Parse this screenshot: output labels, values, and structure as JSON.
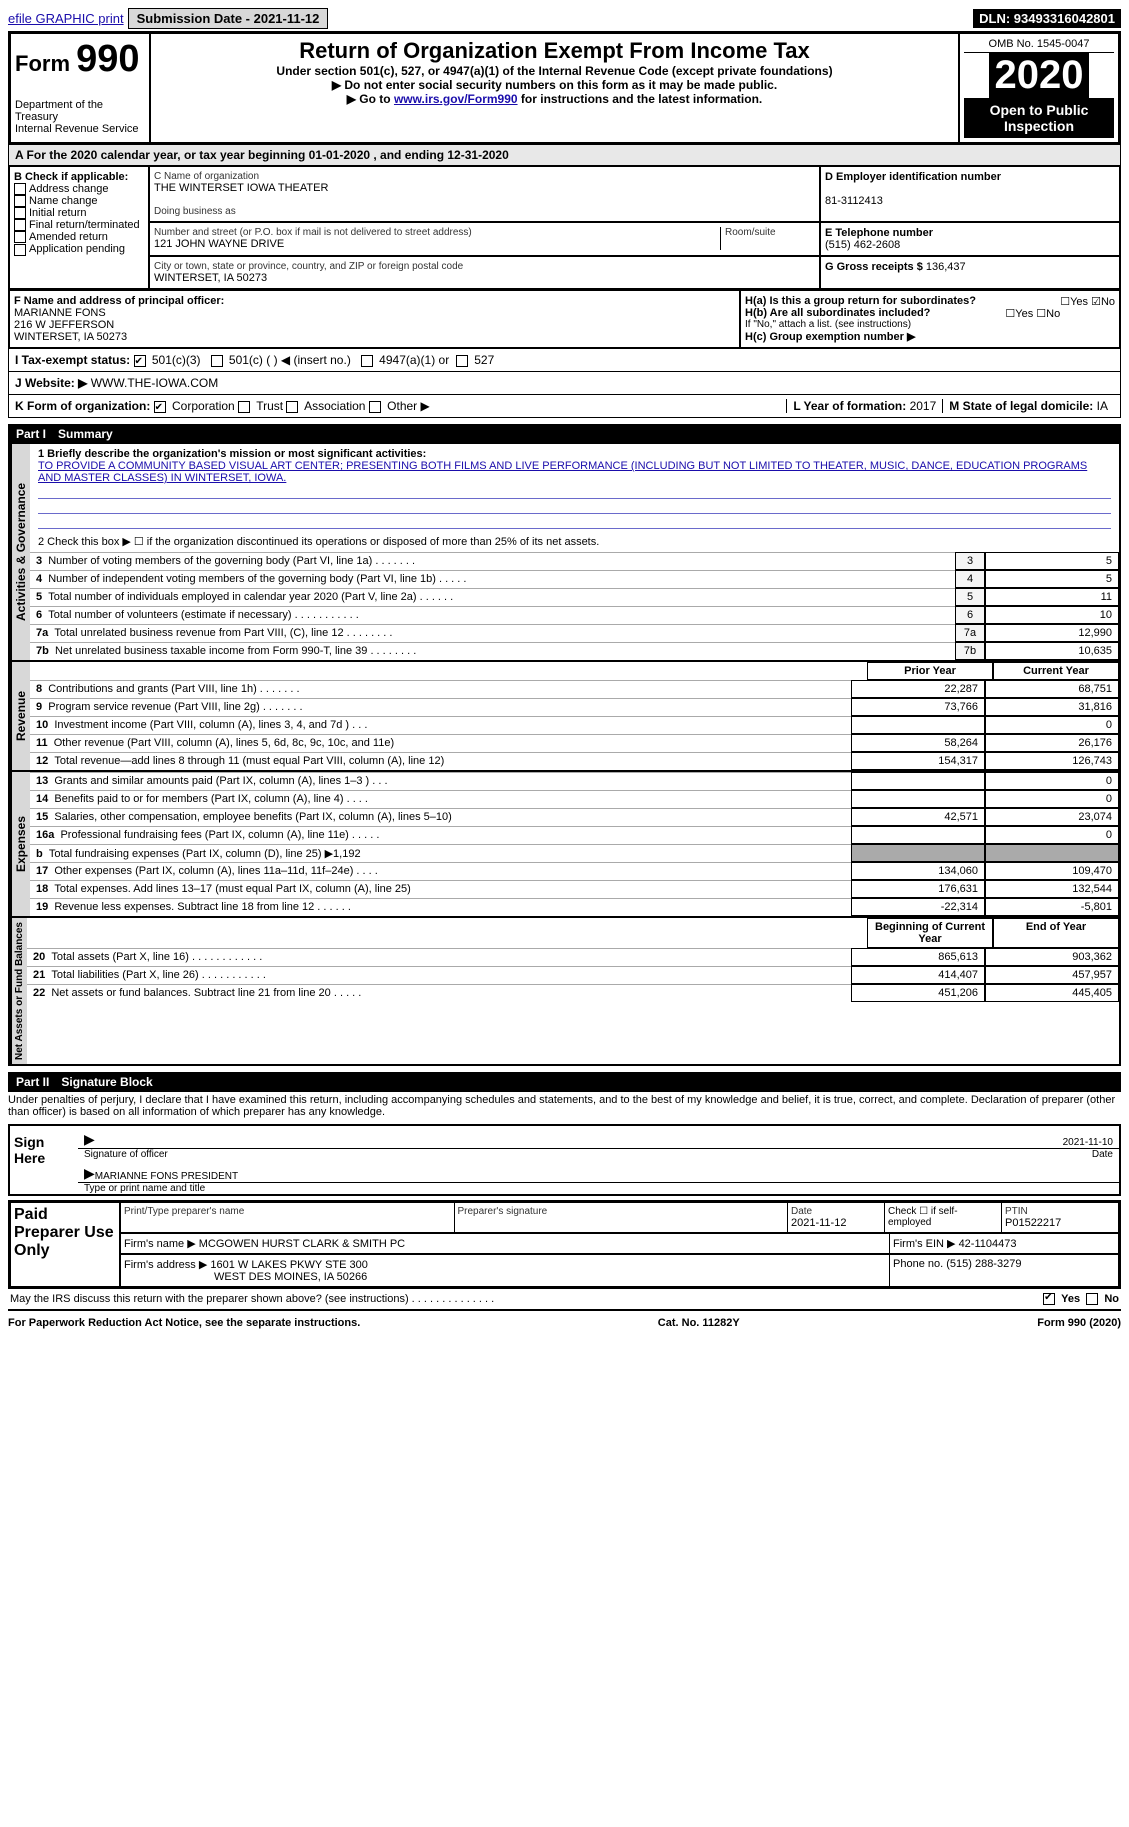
{
  "topbar": {
    "efile_link": "efile GRAPHIC print",
    "submission_label": "Submission Date - 2021-11-12",
    "dln": "DLN: 93493316042801"
  },
  "header": {
    "form_label": "Form",
    "form_number": "990",
    "title": "Return of Organization Exempt From Income Tax",
    "subtitle1": "Under section 501(c), 527, or 4947(a)(1) of the Internal Revenue Code (except private foundations)",
    "subtitle2": "▶ Do not enter social security numbers on this form as it may be made public.",
    "subtitle3_prefix": "▶ Go to ",
    "subtitle3_link": "www.irs.gov/Form990",
    "subtitle3_suffix": " for instructions and the latest information.",
    "dept": "Department of the Treasury\nInternal Revenue Service",
    "omb": "OMB No. 1545-0047",
    "year": "2020",
    "inspection": "Open to Public Inspection"
  },
  "sectionA": {
    "text": "A For the 2020 calendar year, or tax year beginning 01-01-2020   , and ending 12-31-2020"
  },
  "boxB": {
    "heading": "B Check if applicable:",
    "items": [
      "Address change",
      "Name change",
      "Initial return",
      "Final return/terminated",
      "Amended return",
      "Application pending"
    ]
  },
  "boxC": {
    "name_caption": "C Name of organization",
    "name": "THE WINTERSET IOWA THEATER",
    "dba_caption": "Doing business as",
    "dba": "",
    "street_caption": "Number and street (or P.O. box if mail is not delivered to street address)",
    "room_caption": "Room/suite",
    "street": "121 JOHN WAYNE DRIVE",
    "city_caption": "City or town, state or province, country, and ZIP or foreign postal code",
    "city": "WINTERSET, IA  50273"
  },
  "boxD": {
    "caption": "D Employer identification number",
    "value": "81-3112413"
  },
  "boxE": {
    "caption": "E Telephone number",
    "value": "(515) 462-2608"
  },
  "boxG": {
    "caption": "G Gross receipts $",
    "value": "136,437"
  },
  "boxF": {
    "caption": "F Name and address of principal officer:",
    "name": "MARIANNE FONS",
    "addr1": "216 W JEFFERSON",
    "addr2": "WINTERSET, IA  50273"
  },
  "boxH": {
    "a_label": "H(a)  Is this a group return for subordinates?",
    "b_label": "H(b)  Are all subordinates included?",
    "b_note": "If \"No,\" attach a list. (see instructions)",
    "c_label": "H(c)  Group exemption number ▶",
    "yes": "Yes",
    "no": "No"
  },
  "statusI": {
    "label": "I   Tax-exempt status:",
    "opt1": "501(c)(3)",
    "opt2": "501(c) (  ) ◀ (insert no.)",
    "opt3": "4947(a)(1) or",
    "opt4": "527"
  },
  "websiteJ": {
    "label": "J   Website: ▶",
    "value": "WWW.THE-IOWA.COM"
  },
  "formK": {
    "label": "K Form of organization:",
    "opts": [
      "Corporation",
      "Trust",
      "Association",
      "Other ▶"
    ]
  },
  "boxL": {
    "label": "L Year of formation:",
    "value": "2017"
  },
  "boxM": {
    "label": "M State of legal domicile:",
    "value": "IA"
  },
  "part1": {
    "tag": "Part I",
    "title": "Summary",
    "line1_label": "1  Briefly describe the organization's mission or most significant activities:",
    "mission": "TO PROVIDE A COMMUNITY BASED VISUAL ART CENTER; PRESENTING BOTH FILMS AND LIVE PERFORMANCE (INCLUDING BUT NOT LIMITED TO THEATER, MUSIC, DANCE, EDUCATION PROGRAMS AND MASTER CLASSES) IN WINTERSET, IOWA.",
    "line2_label": "2   Check this box ▶ ☐  if the organization discontinued its operations or disposed of more than 25% of its net assets.",
    "governance_tab": "Activities & Governance",
    "revenue_tab": "Revenue",
    "expenses_tab": "Expenses",
    "netassets_tab": "Net Assets or Fund Balances",
    "gov_rows": [
      {
        "n": "3",
        "label": "Number of voting members of the governing body (Part VI, line 1a)   .   .   .   .   .   .   .",
        "val": "5"
      },
      {
        "n": "4",
        "label": "Number of independent voting members of the governing body (Part VI, line 1b)   .   .   .   .   .",
        "val": "5"
      },
      {
        "n": "5",
        "label": "Total number of individuals employed in calendar year 2020 (Part V, line 2a)   .   .   .   .   .   .",
        "val": "11"
      },
      {
        "n": "6",
        "label": "Total number of volunteers (estimate if necessary)   .   .   .   .   .   .   .   .   .   .   .",
        "val": "10"
      },
      {
        "n": "7a",
        "label": "Total unrelated business revenue from Part VIII, (C), line 12   .   .   .   .   .   .   .   .",
        "val": "12,990"
      },
      {
        "n": "7b",
        "label": "Net unrelated business taxable income from Form 990-T, line 39   .   .   .   .   .   .   .   .",
        "val": "10,635"
      }
    ],
    "col_prior": "Prior Year",
    "col_current": "Current Year",
    "rev_rows": [
      {
        "n": "8",
        "label": "Contributions and grants (Part VIII, line 1h)   .   .   .   .   .   .   .",
        "p": "22,287",
        "c": "68,751"
      },
      {
        "n": "9",
        "label": "Program service revenue (Part VIII, line 2g)   .   .   .   .   .   .   .",
        "p": "73,766",
        "c": "31,816"
      },
      {
        "n": "10",
        "label": "Investment income (Part VIII, column (A), lines 3, 4, and 7d )   .   .   .",
        "p": "",
        "c": "0"
      },
      {
        "n": "11",
        "label": "Other revenue (Part VIII, column (A), lines 5, 6d, 8c, 9c, 10c, and 11e)",
        "p": "58,264",
        "c": "26,176"
      },
      {
        "n": "12",
        "label": "Total revenue—add lines 8 through 11 (must equal Part VIII, column (A), line 12)",
        "p": "154,317",
        "c": "126,743"
      }
    ],
    "exp_rows": [
      {
        "n": "13",
        "label": "Grants and similar amounts paid (Part IX, column (A), lines 1–3 )   .   .   .",
        "p": "",
        "c": "0"
      },
      {
        "n": "14",
        "label": "Benefits paid to or for members (Part IX, column (A), line 4)   .   .   .   .",
        "p": "",
        "c": "0"
      },
      {
        "n": "15",
        "label": "Salaries, other compensation, employee benefits (Part IX, column (A), lines 5–10)",
        "p": "42,571",
        "c": "23,074"
      },
      {
        "n": "16a",
        "label": "Professional fundraising fees (Part IX, column (A), line 11e)   .   .   .   .   .",
        "p": "",
        "c": "0"
      },
      {
        "n": "b",
        "label": "Total fundraising expenses (Part IX, column (D), line 25) ▶1,192",
        "p": "GREY",
        "c": "GREY"
      },
      {
        "n": "17",
        "label": "Other expenses (Part IX, column (A), lines 11a–11d, 11f–24e)   .   .   .   .",
        "p": "134,060",
        "c": "109,470"
      },
      {
        "n": "18",
        "label": "Total expenses. Add lines 13–17 (must equal Part IX, column (A), line 25)",
        "p": "176,631",
        "c": "132,544"
      },
      {
        "n": "19",
        "label": "Revenue less expenses. Subtract line 18 from line 12   .   .   .   .   .   .",
        "p": "-22,314",
        "c": "-5,801"
      }
    ],
    "col_begin": "Beginning of Current Year",
    "col_end": "End of Year",
    "net_rows": [
      {
        "n": "20",
        "label": "Total assets (Part X, line 16)   .   .   .   .   .   .   .   .   .   .   .   .",
        "p": "865,613",
        "c": "903,362"
      },
      {
        "n": "21",
        "label": "Total liabilities (Part X, line 26)   .   .   .   .   .   .   .   .   .   .   .",
        "p": "414,407",
        "c": "457,957"
      },
      {
        "n": "22",
        "label": "Net assets or fund balances. Subtract line 21 from line 20   .   .   .   .   .",
        "p": "451,206",
        "c": "445,405"
      }
    ]
  },
  "part2": {
    "tag": "Part II",
    "title": "Signature Block",
    "declaration": "Under penalties of perjury, I declare that I have examined this return, including accompanying schedules and statements, and to the best of my knowledge and belief, it is true, correct, and complete. Declaration of preparer (other than officer) is based on all information of which preparer has any knowledge.",
    "sign_here": "Sign Here",
    "sig_officer": "Signature of officer",
    "sig_date": "Date",
    "sig_date_val": "2021-11-10",
    "officer_name": "MARIANNE FONS PRESIDENT",
    "type_name": "Type or print name and title",
    "paid_prep": "Paid Preparer Use Only",
    "prep_name_label": "Print/Type preparer's name",
    "prep_sig_label": "Preparer's signature",
    "prep_date_label": "Date",
    "prep_date_val": "2021-11-12",
    "self_emp": "Check ☐ if self-employed",
    "ptin_label": "PTIN",
    "ptin_val": "P01522217",
    "firm_name_label": "Firm's name   ▶",
    "firm_name": "MCGOWEN HURST CLARK & SMITH PC",
    "firm_ein_label": "Firm's EIN ▶",
    "firm_ein": "42-1104473",
    "firm_addr_label": "Firm's address ▶",
    "firm_addr1": "1601 W LAKES PKWY STE 300",
    "firm_addr2": "WEST DES MOINES, IA  50266",
    "phone_label": "Phone no.",
    "phone": "(515) 288-3279",
    "discuss": "May the IRS discuss this return with the preparer shown above? (see instructions)   .   .   .   .   .   .   .   .   .   .   .   .   .   .",
    "discuss_yes": "Yes",
    "discuss_no": "No"
  },
  "footer": {
    "left": "For Paperwork Reduction Act Notice, see the separate instructions.",
    "mid": "Cat. No. 11282Y",
    "right": "Form 990 (2020)"
  }
}
